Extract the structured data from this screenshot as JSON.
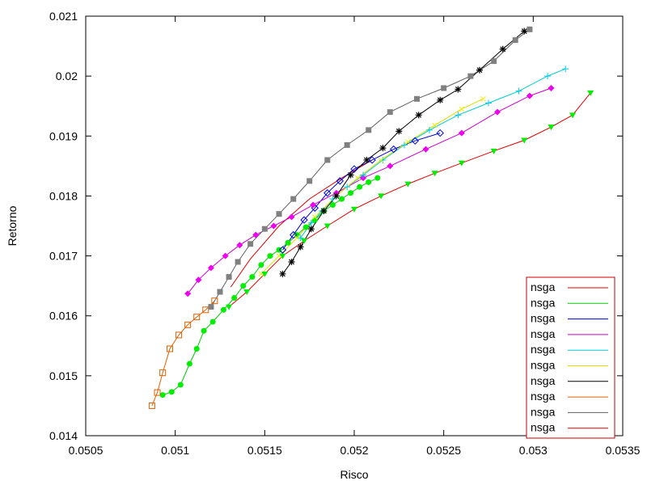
{
  "chart_data": {
    "type": "scatter",
    "title": "",
    "xlabel": "Risco",
    "ylabel": "Retorno",
    "xlim": [
      0.0505,
      0.0535
    ],
    "ylim": [
      0.014,
      0.021
    ],
    "xticks": [
      0.0505,
      0.051,
      0.0515,
      0.052,
      0.0525,
      0.053,
      0.0535
    ],
    "xtick_labels": [
      "0.0505",
      "0.051",
      "0.0515",
      "0.052",
      "0.0525",
      "0.053",
      "0.0535"
    ],
    "yticks": [
      0.014,
      0.015,
      0.016,
      0.017,
      0.018,
      0.019,
      0.02,
      0.021
    ],
    "ytick_labels": [
      "0.014",
      "0.015",
      "0.016",
      "0.017",
      "0.018",
      "0.019",
      "0.02",
      "0.021"
    ],
    "grid": false,
    "legend_position": "bottom-right",
    "series": [
      {
        "name": "nsga",
        "color": "#e00000",
        "line_color": "#e00000",
        "marker": "none",
        "points": [
          [
            0.05131,
            0.01648
          ],
          [
            0.05142,
            0.01695
          ],
          [
            0.05158,
            0.0175
          ],
          [
            0.05175,
            0.01795
          ],
          [
            0.05193,
            0.0183
          ],
          [
            0.0521,
            0.0186
          ]
        ]
      },
      {
        "name": "nsga",
        "color": "#00ee00",
        "line_color": "#00cc00",
        "marker": "filled-circle",
        "points": [
          [
            0.05093,
            0.01468
          ],
          [
            0.05098,
            0.01473
          ],
          [
            0.05103,
            0.01485
          ],
          [
            0.05108,
            0.0152
          ],
          [
            0.05112,
            0.01545
          ],
          [
            0.05116,
            0.01575
          ],
          [
            0.05121,
            0.0159
          ],
          [
            0.05127,
            0.0161
          ],
          [
            0.05133,
            0.0163
          ],
          [
            0.05138,
            0.0165
          ],
          [
            0.05143,
            0.01665
          ],
          [
            0.05148,
            0.01685
          ],
          [
            0.05153,
            0.017
          ],
          [
            0.05158,
            0.0171
          ],
          [
            0.05163,
            0.01722
          ],
          [
            0.05168,
            0.01735
          ],
          [
            0.05173,
            0.01748
          ],
          [
            0.05178,
            0.0176
          ],
          [
            0.05183,
            0.01775
          ],
          [
            0.05188,
            0.01785
          ],
          [
            0.05193,
            0.01795
          ],
          [
            0.05198,
            0.01805
          ],
          [
            0.05203,
            0.01815
          ],
          [
            0.05208,
            0.01823
          ],
          [
            0.05213,
            0.0183
          ]
        ]
      },
      {
        "name": "nsga",
        "color": "#0000dd",
        "line_color": "#0000cc",
        "marker": "open-diamond",
        "points": [
          [
            0.0516,
            0.0171
          ],
          [
            0.05166,
            0.01735
          ],
          [
            0.05172,
            0.0176
          ],
          [
            0.05178,
            0.0178
          ],
          [
            0.05185,
            0.01805
          ],
          [
            0.05192,
            0.01825
          ],
          [
            0.052,
            0.01845
          ],
          [
            0.0521,
            0.0186
          ],
          [
            0.05222,
            0.01878
          ],
          [
            0.05234,
            0.01892
          ],
          [
            0.05248,
            0.01905
          ]
        ]
      },
      {
        "name": "nsga",
        "color": "#ee00ee",
        "line_color": "#cc00cc",
        "marker": "filled-diamond",
        "points": [
          [
            0.05107,
            0.01637
          ],
          [
            0.05113,
            0.0166
          ],
          [
            0.0512,
            0.0168
          ],
          [
            0.05128,
            0.017
          ],
          [
            0.05136,
            0.01718
          ],
          [
            0.05145,
            0.01735
          ],
          [
            0.05155,
            0.0175
          ],
          [
            0.05165,
            0.01765
          ],
          [
            0.05177,
            0.01785
          ],
          [
            0.0519,
            0.01805
          ],
          [
            0.05205,
            0.0183
          ],
          [
            0.0522,
            0.0185
          ],
          [
            0.0524,
            0.01878
          ],
          [
            0.0526,
            0.01905
          ],
          [
            0.0528,
            0.0194
          ],
          [
            0.05298,
            0.01967
          ],
          [
            0.0531,
            0.0198
          ]
        ]
      },
      {
        "name": "nsga",
        "color": "#00ccee",
        "line_color": "#00cccc",
        "marker": "plus",
        "points": [
          [
            0.0517,
            0.0173
          ],
          [
            0.05176,
            0.01755
          ],
          [
            0.05182,
            0.01775
          ],
          [
            0.05188,
            0.01795
          ],
          [
            0.05196,
            0.01815
          ],
          [
            0.05205,
            0.01835
          ],
          [
            0.05216,
            0.0186
          ],
          [
            0.05228,
            0.01885
          ],
          [
            0.05242,
            0.0191
          ],
          [
            0.05258,
            0.01935
          ],
          [
            0.05275,
            0.01955
          ],
          [
            0.05292,
            0.01975
          ],
          [
            0.05308,
            0.02
          ],
          [
            0.05318,
            0.02012
          ]
        ]
      },
      {
        "name": "nsga",
        "color": "#eeee00",
        "line_color": "#dddd00",
        "marker": "x",
        "points": [
          [
            0.05148,
            0.0167
          ],
          [
            0.05158,
            0.017
          ],
          [
            0.05168,
            0.0173
          ],
          [
            0.05178,
            0.01765
          ],
          [
            0.0519,
            0.018
          ],
          [
            0.05202,
            0.0183
          ],
          [
            0.05215,
            0.0186
          ],
          [
            0.0523,
            0.0189
          ],
          [
            0.05245,
            0.01918
          ],
          [
            0.0526,
            0.01945
          ],
          [
            0.05272,
            0.01962
          ]
        ]
      },
      {
        "name": "nsga",
        "color": "#000000",
        "line_color": "#000000",
        "marker": "star",
        "points": [
          [
            0.0516,
            0.0167
          ],
          [
            0.05165,
            0.0169
          ],
          [
            0.0517,
            0.01715
          ],
          [
            0.05176,
            0.01745
          ],
          [
            0.05183,
            0.01775
          ],
          [
            0.0519,
            0.018
          ],
          [
            0.05198,
            0.01835
          ],
          [
            0.05207,
            0.0186
          ],
          [
            0.05216,
            0.0188
          ],
          [
            0.05225,
            0.01908
          ],
          [
            0.05236,
            0.01935
          ],
          [
            0.05248,
            0.0196
          ],
          [
            0.05258,
            0.01978
          ],
          [
            0.0527,
            0.0201
          ],
          [
            0.05283,
            0.02045
          ],
          [
            0.05295,
            0.02075
          ]
        ]
      },
      {
        "name": "nsga",
        "color": "#e06000",
        "line_color": "#e06000",
        "marker": "open-square",
        "points": [
          [
            0.05087,
            0.0145
          ],
          [
            0.0509,
            0.01472
          ],
          [
            0.05093,
            0.01505
          ],
          [
            0.05097,
            0.01545
          ],
          [
            0.05102,
            0.01568
          ],
          [
            0.05107,
            0.01585
          ],
          [
            0.05112,
            0.01598
          ],
          [
            0.05117,
            0.0161
          ],
          [
            0.05122,
            0.01625
          ]
        ]
      },
      {
        "name": "nsga",
        "color": "#808080",
        "line_color": "#606060",
        "marker": "filled-square",
        "points": [
          [
            0.0512,
            0.01615
          ],
          [
            0.05125,
            0.0164
          ],
          [
            0.0513,
            0.01665
          ],
          [
            0.05135,
            0.0169
          ],
          [
            0.05142,
            0.0172
          ],
          [
            0.0515,
            0.01745
          ],
          [
            0.05158,
            0.0177
          ],
          [
            0.05166,
            0.01795
          ],
          [
            0.05175,
            0.01825
          ],
          [
            0.05185,
            0.0186
          ],
          [
            0.05196,
            0.01885
          ],
          [
            0.05208,
            0.0191
          ],
          [
            0.0522,
            0.0194
          ],
          [
            0.05235,
            0.01962
          ],
          [
            0.0525,
            0.0198
          ],
          [
            0.05265,
            0.02
          ],
          [
            0.05278,
            0.02025
          ],
          [
            0.0529,
            0.0206
          ],
          [
            0.05298,
            0.02078
          ]
        ]
      },
      {
        "name": "nsga",
        "color": "#00ee00",
        "line_color": "#e00000",
        "marker": "filled-triangle-down",
        "points": [
          [
            0.0513,
            0.01615
          ],
          [
            0.0514,
            0.0164
          ],
          [
            0.0515,
            0.0167
          ],
          [
            0.0516,
            0.017
          ],
          [
            0.05172,
            0.01725
          ],
          [
            0.05185,
            0.0175
          ],
          [
            0.052,
            0.01778
          ],
          [
            0.05215,
            0.018
          ],
          [
            0.0523,
            0.0182
          ],
          [
            0.05245,
            0.01838
          ],
          [
            0.0526,
            0.01855
          ],
          [
            0.05278,
            0.01875
          ],
          [
            0.05295,
            0.01893
          ],
          [
            0.0531,
            0.01915
          ],
          [
            0.05322,
            0.01935
          ],
          [
            0.05332,
            0.01972
          ]
        ]
      }
    ]
  }
}
